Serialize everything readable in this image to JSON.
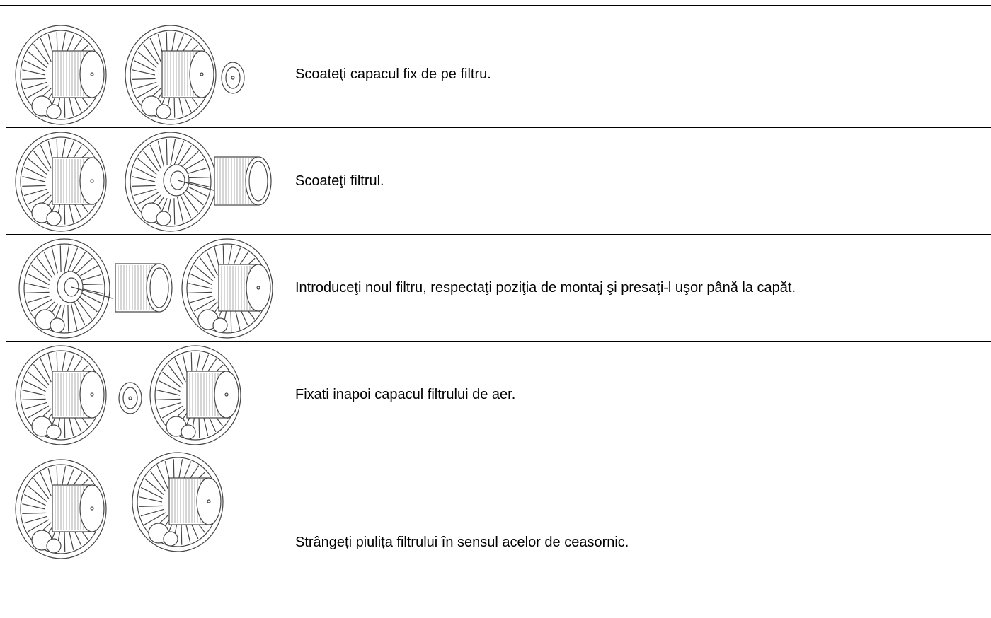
{
  "table": {
    "rows": [
      {
        "text": "Scoateţi capacul fix de pe filtru."
      },
      {
        "text": "Scoateţi filtrul."
      },
      {
        "text": "Introduceţi noul filtru, respectaţi poziţia de montaj şi presaţi-l uşor până la capăt."
      },
      {
        "text": "Fixati inapoi capacul filtrului de aer."
      },
      {
        "text": "Strângeți piulița filtrului în sensul acelor de ceasornic."
      }
    ]
  }
}
